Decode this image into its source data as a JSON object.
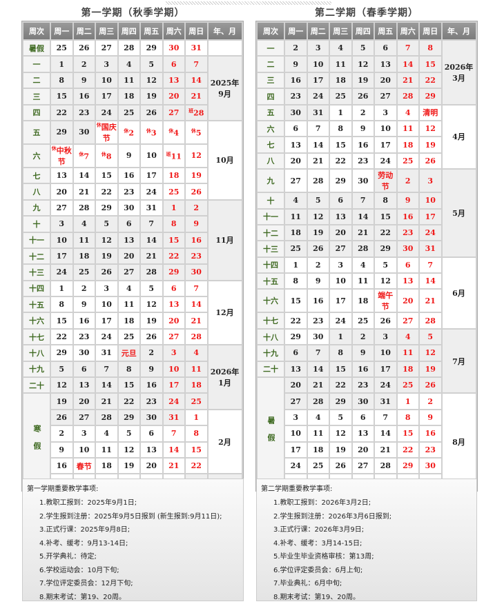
{
  "semester1": {
    "title": "第一学期（秋季学期）",
    "headers": [
      "周次",
      "周一",
      "周二",
      "周三",
      "周四",
      "周五",
      "周六",
      "周日",
      "年、月"
    ],
    "rows": [
      {
        "week": "暑假",
        "days": [
          "25",
          "26",
          "27",
          "28",
          "29",
          "30",
          "31"
        ]
      },
      {
        "week": "一",
        "days": [
          "1",
          "2",
          "3",
          "4",
          "5",
          "6",
          "7"
        ]
      },
      {
        "week": "二",
        "days": [
          "8",
          "9",
          "10",
          "11",
          "12",
          "13",
          "14"
        ]
      },
      {
        "week": "三",
        "days": [
          "15",
          "16",
          "17",
          "18",
          "19",
          "20",
          "21"
        ]
      },
      {
        "week": "四",
        "days": [
          "22",
          "23",
          "24",
          "25",
          "26",
          "27",
          {
            "p": "班",
            "t": "28"
          }
        ]
      },
      {
        "week": "五",
        "days": [
          "29",
          "30",
          {
            "p": "休",
            "t": "国庆节"
          },
          {
            "p": "休",
            "t": "2"
          },
          {
            "p": "休",
            "t": "3"
          },
          {
            "p": "休",
            "t": "4"
          },
          {
            "p": "休",
            "t": "5"
          }
        ]
      },
      {
        "week": "六",
        "days": [
          {
            "p": "休",
            "t": "中秋节"
          },
          {
            "p": "休",
            "t": "7"
          },
          {
            "p": "休",
            "t": "8"
          },
          "9",
          "10",
          {
            "p": "班",
            "t": "11"
          },
          "12"
        ]
      },
      {
        "week": "七",
        "days": [
          "13",
          "14",
          "15",
          "16",
          "17",
          "18",
          "19"
        ]
      },
      {
        "week": "八",
        "days": [
          "20",
          "21",
          "22",
          "23",
          "24",
          "25",
          "26"
        ]
      },
      {
        "week": "九",
        "days": [
          "27",
          "28",
          "29",
          "30",
          "31",
          "1",
          "2"
        ]
      },
      {
        "week": "十",
        "days": [
          "3",
          "4",
          "5",
          "6",
          "7",
          "8",
          "9"
        ]
      },
      {
        "week": "十一",
        "days": [
          "10",
          "11",
          "12",
          "13",
          "14",
          "15",
          "16"
        ]
      },
      {
        "week": "十二",
        "days": [
          "17",
          "18",
          "19",
          "20",
          "21",
          "22",
          "23"
        ]
      },
      {
        "week": "十三",
        "days": [
          "24",
          "25",
          "26",
          "27",
          "28",
          "29",
          "30"
        ]
      },
      {
        "week": "十四",
        "days": [
          "1",
          "2",
          "3",
          "4",
          "5",
          "6",
          "7"
        ]
      },
      {
        "week": "十五",
        "days": [
          "8",
          "9",
          "10",
          "11",
          "12",
          "13",
          "14"
        ]
      },
      {
        "week": "十六",
        "days": [
          "15",
          "16",
          "17",
          "18",
          "19",
          "20",
          "21"
        ]
      },
      {
        "week": "十七",
        "days": [
          "22",
          "23",
          "24",
          "25",
          "26",
          "27",
          "28"
        ]
      },
      {
        "week": "十八",
        "days": [
          "29",
          "30",
          "31",
          "元旦",
          "2",
          "3",
          "4"
        ]
      },
      {
        "week": "十九",
        "days": [
          "5",
          "6",
          "7",
          "8",
          "9",
          "10",
          "11"
        ]
      },
      {
        "week": "二十",
        "days": [
          "12",
          "13",
          "14",
          "15",
          "16",
          "17",
          "18"
        ]
      },
      {
        "week": "寒假",
        "span": 6,
        "days": [
          "19",
          "20",
          "21",
          "22",
          "23",
          "24",
          "25"
        ]
      },
      {
        "days": [
          "26",
          "27",
          "28",
          "29",
          "30",
          "31",
          "1"
        ]
      },
      {
        "days": [
          "2",
          "3",
          "4",
          "5",
          "6",
          "7",
          "8"
        ]
      },
      {
        "days": [
          "9",
          "10",
          "11",
          "12",
          "13",
          "14",
          "15"
        ]
      },
      {
        "days": [
          "16",
          "春节",
          "18",
          "19",
          "20",
          "21",
          "22"
        ]
      },
      {
        "days": [
          "23",
          "24",
          "25",
          "26",
          "27",
          "28",
          "1"
        ]
      }
    ],
    "months": [
      {
        "label": "",
        "span": 1
      },
      {
        "label": "2025年9月",
        "span": 4
      },
      {
        "label": "10月",
        "span": 4
      },
      {
        "label": "11月",
        "span": 5
      },
      {
        "label": "12月",
        "span": 4
      },
      {
        "label": "2026年1月",
        "span": 4
      },
      {
        "label": "2月",
        "span": 4
      },
      {
        "label": "",
        "span": 1
      }
    ],
    "notes_title": "第一学期重要教学事项:",
    "notes": [
      "1.教职工报到：2025年9月1日;",
      "2.学生报到注册：2025年9月5日报到 (新生报到:9月11日);",
      "3.正式行课：2025年9月8日;",
      "4.补考、缓考：9月13-14日;",
      "5.开学典礼：待定;",
      "6.学校运动会：10月下旬;",
      "7.学位评定委员会：12月下旬;",
      "8.期末考试：第19、20周。"
    ]
  },
  "semester2": {
    "title": "第二学期（春季学期）",
    "headers": [
      "周次",
      "周一",
      "周二",
      "周三",
      "周四",
      "周五",
      "周六",
      "周日",
      "年、月"
    ],
    "rows": [
      {
        "week": "一",
        "days": [
          "2",
          "3",
          "4",
          "5",
          "6",
          "7",
          "8"
        ]
      },
      {
        "week": "二",
        "days": [
          "9",
          "10",
          "11",
          "12",
          "13",
          "14",
          "15"
        ]
      },
      {
        "week": "三",
        "days": [
          "16",
          "17",
          "18",
          "19",
          "20",
          "21",
          "22"
        ]
      },
      {
        "week": "四",
        "days": [
          "23",
          "24",
          "25",
          "26",
          "27",
          "28",
          "29"
        ]
      },
      {
        "week": "五",
        "days": [
          "30",
          "31",
          "1",
          "2",
          "3",
          "4",
          "清明"
        ]
      },
      {
        "week": "六",
        "days": [
          "6",
          "7",
          "8",
          "9",
          "10",
          "11",
          "12"
        ]
      },
      {
        "week": "七",
        "days": [
          "13",
          "14",
          "15",
          "16",
          "17",
          "18",
          "19"
        ]
      },
      {
        "week": "八",
        "days": [
          "20",
          "21",
          "22",
          "23",
          "24",
          "25",
          "26"
        ]
      },
      {
        "week": "九",
        "days": [
          "27",
          "28",
          "29",
          "30",
          "劳动节",
          "2",
          "3"
        ]
      },
      {
        "week": "十",
        "days": [
          "4",
          "5",
          "6",
          "7",
          "8",
          "9",
          "10"
        ]
      },
      {
        "week": "十一",
        "days": [
          "11",
          "12",
          "13",
          "14",
          "15",
          "16",
          "17"
        ]
      },
      {
        "week": "十二",
        "days": [
          "18",
          "19",
          "20",
          "21",
          "22",
          "23",
          "24"
        ]
      },
      {
        "week": "十三",
        "days": [
          "25",
          "26",
          "27",
          "28",
          "29",
          "30",
          "31"
        ]
      },
      {
        "week": "十四",
        "days": [
          "1",
          "2",
          "3",
          "4",
          "5",
          "6",
          "7"
        ]
      },
      {
        "week": "十五",
        "days": [
          "8",
          "9",
          "10",
          "11",
          "12",
          "13",
          "14"
        ]
      },
      {
        "week": "十六",
        "days": [
          "15",
          "16",
          "17",
          "18",
          "端午节",
          "20",
          "21"
        ]
      },
      {
        "week": "十七",
        "days": [
          "22",
          "23",
          "24",
          "25",
          "26",
          "27",
          "28"
        ]
      },
      {
        "week": "十八",
        "days": [
          "29",
          "30",
          "1",
          "2",
          "3",
          "4",
          "5"
        ]
      },
      {
        "week": "十九",
        "days": [
          "6",
          "7",
          "8",
          "9",
          "10",
          "11",
          "12"
        ]
      },
      {
        "week": "二十",
        "days": [
          "13",
          "14",
          "15",
          "16",
          "17",
          "18",
          "19"
        ]
      },
      {
        "week": "暑假",
        "span": 7,
        "days": [
          "20",
          "21",
          "22",
          "23",
          "24",
          "25",
          "26"
        ]
      },
      {
        "days": [
          "27",
          "28",
          "29",
          "30",
          "31",
          "1",
          "2"
        ]
      },
      {
        "days": [
          "3",
          "4",
          "5",
          "6",
          "7",
          "8",
          "9"
        ]
      },
      {
        "days": [
          "10",
          "11",
          "12",
          "13",
          "14",
          "15",
          "16"
        ]
      },
      {
        "days": [
          "17",
          "18",
          "19",
          "20",
          "21",
          "22",
          "23"
        ]
      },
      {
        "days": [
          "24",
          "25",
          "26",
          "27",
          "28",
          "29",
          "30"
        ]
      },
      {
        "days": [
          "",
          "",
          "",
          "",
          "",
          "",
          ""
        ]
      }
    ],
    "months": [
      {
        "label": "2026年3月",
        "span": 4
      },
      {
        "label": "4月",
        "span": 4
      },
      {
        "label": "5月",
        "span": 5
      },
      {
        "label": "6月",
        "span": 4
      },
      {
        "label": "7月",
        "span": 4
      },
      {
        "label": "8月",
        "span": 6
      }
    ],
    "notes_title": "第二学期重要教学事项:",
    "notes": [
      "1.教职工报到：2026年3月2日;",
      "2.学生报到注册：2026年3月6日报到;",
      "3.正式行课：2026年3月9日;",
      "4.补考、缓考：3月14-15日;",
      "5.毕业生毕业资格审核：第13周;",
      "6.学位评定委员会：6月上旬;",
      "7.毕业典礼：6月中旬;",
      "8.期末考试：第19、20周。"
    ]
  },
  "colors": {
    "header": "#8a8a8a",
    "week_text": "#3f6a22",
    "weekend_red": "#f01818",
    "month_shade": "#eeeeee"
  }
}
